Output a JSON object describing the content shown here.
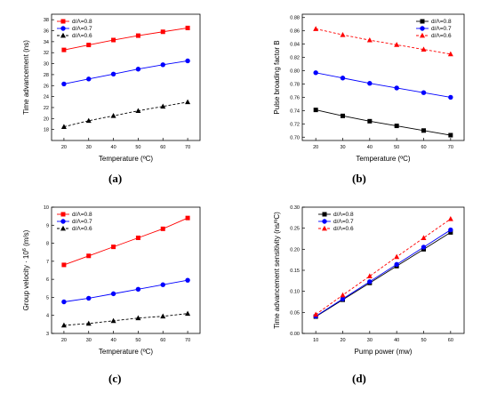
{
  "panels": [
    {
      "label": "(a)"
    },
    {
      "label": "(b)"
    },
    {
      "label": "(c)"
    },
    {
      "label": "(d)"
    }
  ],
  "chart_data": [
    {
      "type": "line",
      "xlabel": "Temperature (ºC)",
      "ylabel": "Time advancement (ns)",
      "x": [
        20,
        30,
        40,
        50,
        60,
        70
      ],
      "xlim": [
        15,
        75
      ],
      "ylim": [
        16,
        39
      ],
      "xticks": [
        20,
        30,
        40,
        50,
        60,
        70
      ],
      "yticks": [
        18,
        20,
        22,
        24,
        26,
        28,
        30,
        32,
        34,
        36,
        38
      ],
      "legend_position": "top-left",
      "series": [
        {
          "name": "d/Λ=0.8",
          "color": "#ff0000",
          "marker": "square",
          "dash": false,
          "values": [
            32.5,
            33.4,
            34.3,
            35.1,
            35.8,
            36.5
          ]
        },
        {
          "name": "d/Λ=0.7",
          "color": "#0000ff",
          "marker": "circle",
          "dash": false,
          "values": [
            26.3,
            27.2,
            28.1,
            29.0,
            29.8,
            30.5
          ]
        },
        {
          "name": "d/Λ=0.6",
          "color": "#000000",
          "marker": "triangle",
          "dash": true,
          "values": [
            18.5,
            19.6,
            20.5,
            21.4,
            22.2,
            23.0
          ]
        }
      ]
    },
    {
      "type": "line",
      "xlabel": "Temperature (ºC)",
      "ylabel": "Pulse broading factor B",
      "x": [
        20,
        30,
        40,
        50,
        60,
        70
      ],
      "xlim": [
        15,
        75
      ],
      "ylim": [
        0.695,
        0.885
      ],
      "xticks": [
        20,
        30,
        40,
        50,
        60,
        70
      ],
      "yticks": [
        0.7,
        0.72,
        0.74,
        0.76,
        0.78,
        0.8,
        0.82,
        0.84,
        0.86,
        0.88
      ],
      "legend_position": "top-right",
      "series": [
        {
          "name": "d/Λ=0.8",
          "color": "#000000",
          "marker": "square",
          "dash": false,
          "values": [
            0.741,
            0.732,
            0.724,
            0.717,
            0.71,
            0.703
          ]
        },
        {
          "name": "d/Λ=0.7",
          "color": "#0000ff",
          "marker": "circle",
          "dash": false,
          "values": [
            0.797,
            0.789,
            0.781,
            0.774,
            0.767,
            0.76
          ]
        },
        {
          "name": "d/Λ=0.6",
          "color": "#ff0000",
          "marker": "triangle",
          "dash": true,
          "values": [
            0.863,
            0.854,
            0.846,
            0.839,
            0.832,
            0.825
          ]
        }
      ]
    },
    {
      "type": "line",
      "xlabel": "Temperature (ºC)",
      "ylabel": "Group velocity · 10",
      "ylabel_sup": "6",
      "ylabel_suffix": "(m/s)",
      "x": [
        20,
        30,
        40,
        50,
        60,
        70
      ],
      "xlim": [
        15,
        75
      ],
      "ylim": [
        3,
        10
      ],
      "xticks": [
        20,
        30,
        40,
        50,
        60,
        70
      ],
      "yticks": [
        3,
        4,
        5,
        6,
        7,
        8,
        9,
        10
      ],
      "legend_position": "top-left",
      "series": [
        {
          "name": "d/Λ=0.8",
          "color": "#ff0000",
          "marker": "square",
          "dash": false,
          "values": [
            6.8,
            7.3,
            7.8,
            8.3,
            8.8,
            9.4
          ]
        },
        {
          "name": "d/Λ=0.7",
          "color": "#0000ff",
          "marker": "circle",
          "dash": false,
          "values": [
            4.75,
            4.95,
            5.2,
            5.45,
            5.7,
            5.95
          ]
        },
        {
          "name": "d/Λ=0.6",
          "color": "#000000",
          "marker": "triangle",
          "dash": true,
          "values": [
            3.45,
            3.55,
            3.7,
            3.85,
            3.95,
            4.1
          ]
        }
      ]
    },
    {
      "type": "line",
      "xlabel": "Pump power (mw)",
      "ylabel": "Time advancement sensitivity (ns/ºC)",
      "x": [
        10,
        20,
        30,
        40,
        50,
        60
      ],
      "xlim": [
        5,
        65
      ],
      "ylim": [
        0,
        0.3
      ],
      "xticks": [
        10,
        20,
        30,
        40,
        50,
        60
      ],
      "yticks": [
        0.0,
        0.05,
        0.1,
        0.15,
        0.2,
        0.25,
        0.3
      ],
      "legend_position": "top-left",
      "series": [
        {
          "name": "d/Λ=0.8",
          "color": "#000000",
          "marker": "square",
          "dash": false,
          "values": [
            0.04,
            0.08,
            0.12,
            0.16,
            0.2,
            0.24
          ]
        },
        {
          "name": "d/Λ=0.7",
          "color": "#0000ff",
          "marker": "circle",
          "dash": false,
          "values": [
            0.041,
            0.082,
            0.123,
            0.164,
            0.205,
            0.246
          ]
        },
        {
          "name": "d/Λ=0.6",
          "color": "#ff0000",
          "marker": "triangle",
          "dash": true,
          "values": [
            0.045,
            0.091,
            0.136,
            0.182,
            0.227,
            0.272
          ]
        }
      ]
    }
  ]
}
